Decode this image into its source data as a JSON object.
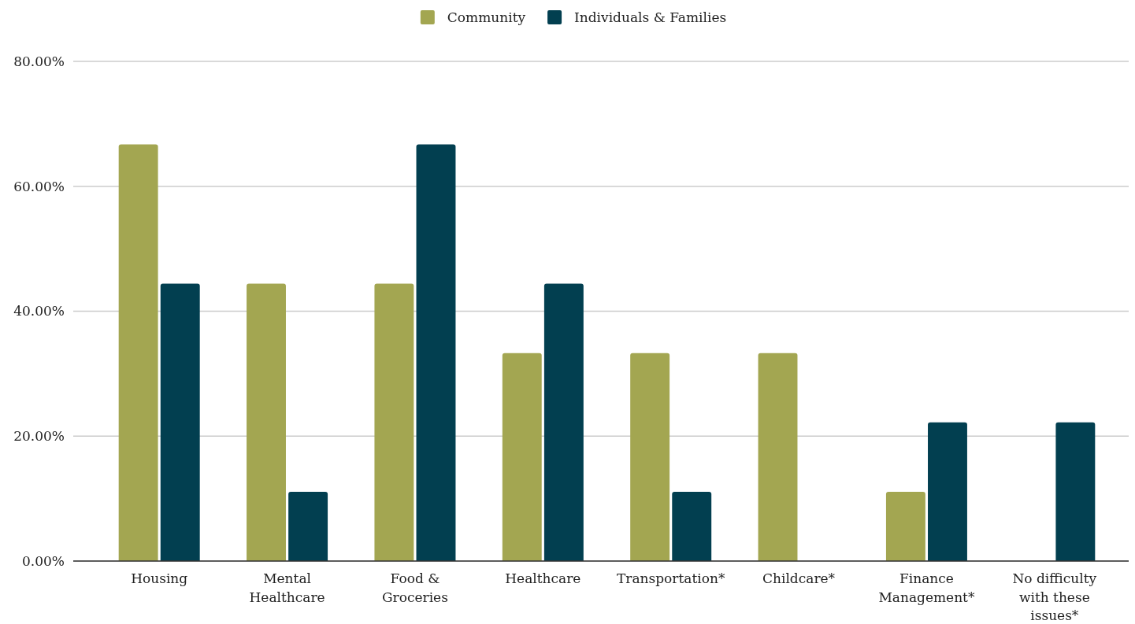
{
  "chart_data": {
    "type": "bar",
    "categories": [
      "Housing",
      "Mental Healthcare",
      "Food & Groceries",
      "Healthcare",
      "Transportation*",
      "Childcare*",
      "Finance Management*",
      "No difficulty with these issues*"
    ],
    "series": [
      {
        "name": "Community",
        "color": "#a3a651",
        "values": [
          66.7,
          44.4,
          44.4,
          33.3,
          33.3,
          33.3,
          11.1,
          0
        ]
      },
      {
        "name": "Individuals & Families",
        "color": "#023f50",
        "values": [
          44.4,
          11.1,
          66.7,
          44.4,
          11.1,
          0,
          22.2,
          22.2
        ]
      }
    ],
    "ylim": [
      0,
      80
    ],
    "yticks": [
      {
        "value": 0,
        "label": "0.00%"
      },
      {
        "value": 20,
        "label": "20.00%"
      },
      {
        "value": 40,
        "label": "40.00%"
      },
      {
        "value": 60,
        "label": "60.00%"
      },
      {
        "value": 80,
        "label": "80.00%"
      }
    ],
    "grid": "y",
    "legend": "top"
  }
}
